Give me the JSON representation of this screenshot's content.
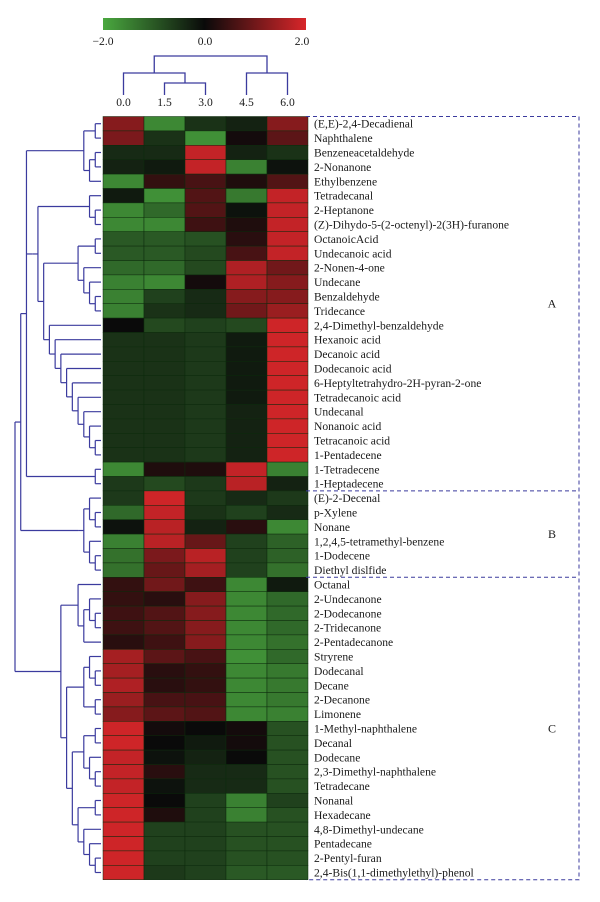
{
  "chart_data": {
    "type": "heatmap",
    "color_scale": {
      "min": -2.0,
      "mid": 0.0,
      "max": 2.0,
      "tick_labels": [
        "−2.0",
        "0.0",
        "2.0"
      ],
      "colors": {
        "low": "#4aa83f",
        "mid": "#0a0a0a",
        "high": "#d8262a"
      }
    },
    "columns": [
      "0.0",
      "1.5",
      "3.0",
      "4.5",
      "6.0"
    ],
    "rows": [
      {
        "label": "(E,E)-2,4-Decadienal",
        "values": [
          1.2,
          -1.6,
          -0.5,
          -0.3,
          1.2
        ]
      },
      {
        "label": "Naphthalene",
        "values": [
          1.1,
          -0.5,
          -1.7,
          0.1,
          0.8
        ]
      },
      {
        "label": "Benzeneacetaldehyde",
        "values": [
          -0.4,
          -0.4,
          1.8,
          -0.3,
          -0.5
        ]
      },
      {
        "label": "2-Nonanone",
        "values": [
          -0.3,
          -0.2,
          1.8,
          -1.5,
          -0.1
        ]
      },
      {
        "label": "Ethylbenzene",
        "values": [
          -1.6,
          0.4,
          0.6,
          0.2,
          0.7
        ]
      },
      {
        "label": "Tetradecanal",
        "values": [
          -0.2,
          -1.7,
          0.7,
          -1.4,
          1.8
        ]
      },
      {
        "label": "2-Heptanone",
        "values": [
          -1.6,
          -1.2,
          0.7,
          -0.1,
          1.8
        ]
      },
      {
        "label": "(Z)-Dihydo-5-(2-octenyl)-2(3H)-furanone",
        "values": [
          -1.6,
          -1.6,
          0.5,
          0.2,
          1.8
        ]
      },
      {
        "label": "OctanoicAcid",
        "values": [
          -1.0,
          -1.0,
          -0.9,
          0.3,
          1.8
        ]
      },
      {
        "label": "Undecanoic acid",
        "values": [
          -1.0,
          -1.0,
          -0.8,
          0.6,
          1.8
        ]
      },
      {
        "label": "2-Nonen-4-one",
        "values": [
          -1.2,
          -1.2,
          -0.8,
          1.6,
          1.0
        ]
      },
      {
        "label": "Undecane",
        "values": [
          -1.5,
          -1.6,
          0.1,
          1.6,
          1.2
        ]
      },
      {
        "label": "Benzaldehyde",
        "values": [
          -1.5,
          -0.7,
          -0.4,
          1.2,
          1.2
        ]
      },
      {
        "label": "Tridecance",
        "values": [
          -1.5,
          -0.5,
          -0.4,
          1.0,
          1.4
        ]
      },
      {
        "label": "2,4-Dimethyl-benzaldehyde",
        "values": [
          0.0,
          -0.8,
          -0.7,
          -0.8,
          1.9
        ]
      },
      {
        "label": "Hexanoic acid",
        "values": [
          -0.5,
          -0.5,
          -0.6,
          -0.2,
          1.9
        ]
      },
      {
        "label": "Decanoic acid",
        "values": [
          -0.5,
          -0.5,
          -0.6,
          -0.2,
          1.9
        ]
      },
      {
        "label": "Dodecanoic acid",
        "values": [
          -0.5,
          -0.5,
          -0.6,
          -0.2,
          1.9
        ]
      },
      {
        "label": "6-Heptyltetrahydro-2H-pyran-2-one",
        "values": [
          -0.5,
          -0.5,
          -0.6,
          -0.2,
          1.9
        ]
      },
      {
        "label": "Tetradecanoic acid",
        "values": [
          -0.5,
          -0.5,
          -0.6,
          -0.2,
          1.9
        ]
      },
      {
        "label": "Undecanal",
        "values": [
          -0.5,
          -0.5,
          -0.6,
          -0.3,
          1.9
        ]
      },
      {
        "label": "Nonanoic acid",
        "values": [
          -0.5,
          -0.5,
          -0.6,
          -0.3,
          1.9
        ]
      },
      {
        "label": "Tetracanoic acid",
        "values": [
          -0.5,
          -0.5,
          -0.6,
          -0.3,
          1.9
        ]
      },
      {
        "label": "1-Pentadecene",
        "values": [
          -0.5,
          -0.5,
          -0.6,
          -0.3,
          1.9
        ]
      },
      {
        "label": "1-Tetradecene",
        "values": [
          -1.6,
          0.2,
          0.2,
          1.8,
          -1.5
        ]
      },
      {
        "label": "1-Heptadecene",
        "values": [
          -0.6,
          -0.8,
          -0.6,
          1.7,
          -0.3
        ]
      },
      {
        "label": "(E)-2-Decenal",
        "values": [
          -0.6,
          1.9,
          -0.6,
          -0.4,
          -0.6
        ]
      },
      {
        "label": "p-Xylene",
        "values": [
          -1.2,
          1.8,
          -0.5,
          -0.7,
          -0.4
        ]
      },
      {
        "label": "Nonane",
        "values": [
          -0.1,
          1.7,
          -0.3,
          0.3,
          -1.6
        ]
      },
      {
        "label": "1,2,4,5-tetramethyl-benzene",
        "values": [
          -1.5,
          1.7,
          0.9,
          -0.7,
          -1.1
        ]
      },
      {
        "label": "1-Dodecene",
        "values": [
          -1.3,
          1.1,
          1.7,
          -0.7,
          -1.1
        ]
      },
      {
        "label": "Diethyl dislfide",
        "values": [
          -1.3,
          0.9,
          1.5,
          -0.7,
          -1.3
        ]
      },
      {
        "label": "Octanal",
        "values": [
          0.4,
          1.0,
          0.5,
          -1.6,
          -0.2
        ]
      },
      {
        "label": "2-Undecanone",
        "values": [
          0.4,
          0.3,
          1.2,
          -1.6,
          -1.2
        ]
      },
      {
        "label": "2-Dodecanone",
        "values": [
          0.5,
          0.7,
          1.2,
          -1.6,
          -1.2
        ]
      },
      {
        "label": "2-Tridecanone",
        "values": [
          0.5,
          0.7,
          1.2,
          -1.6,
          -1.2
        ]
      },
      {
        "label": "2-Pentadecanone",
        "values": [
          0.3,
          0.5,
          1.2,
          -1.6,
          -1.3
        ]
      },
      {
        "label": "Stryrene",
        "values": [
          1.5,
          0.8,
          0.6,
          -1.7,
          -1.2
        ]
      },
      {
        "label": "Dodecanal",
        "values": [
          1.5,
          0.3,
          0.4,
          -1.6,
          -1.4
        ]
      },
      {
        "label": "Decane",
        "values": [
          1.6,
          0.3,
          0.4,
          -1.6,
          -1.4
        ]
      },
      {
        "label": "2-Decanone",
        "values": [
          1.4,
          0.6,
          0.6,
          -1.6,
          -1.4
        ]
      },
      {
        "label": "Limonene",
        "values": [
          1.2,
          0.8,
          0.7,
          -1.6,
          -1.5
        ]
      },
      {
        "label": "1-Methyl-naphthalene",
        "values": [
          1.9,
          0.1,
          0.0,
          0.1,
          -0.9
        ]
      },
      {
        "label": "Decanal",
        "values": [
          1.9,
          0.0,
          -0.2,
          0.1,
          -0.9
        ]
      },
      {
        "label": "Dodecane",
        "values": [
          1.8,
          -0.1,
          -0.3,
          0.0,
          -0.9
        ]
      },
      {
        "label": "2,3-Dimethyl-naphthalene",
        "values": [
          1.8,
          0.3,
          -0.4,
          -0.4,
          -0.9
        ]
      },
      {
        "label": "Tetradecane",
        "values": [
          1.8,
          -0.1,
          -0.4,
          -0.4,
          -0.9
        ]
      },
      {
        "label": "Nonanal",
        "values": [
          1.9,
          0.0,
          -0.7,
          -1.5,
          -0.7
        ]
      },
      {
        "label": "Hexadecane",
        "values": [
          1.9,
          0.2,
          -0.7,
          -1.5,
          -0.9
        ]
      },
      {
        "label": "4,8-Dimethyl-undecane",
        "values": [
          1.9,
          -0.7,
          -0.7,
          -0.9,
          -0.9
        ]
      },
      {
        "label": "Pentadecane",
        "values": [
          1.9,
          -0.7,
          -0.7,
          -0.9,
          -0.9
        ]
      },
      {
        "label": "2-Pentyl-furan",
        "values": [
          1.9,
          -0.7,
          -0.7,
          -0.9,
          -0.9
        ]
      },
      {
        "label": "2,4-Bis(1,1-dimethylethyl)-phenol",
        "values": [
          1.9,
          -0.6,
          -0.7,
          -1.0,
          -1.0
        ]
      }
    ],
    "groups": [
      {
        "label": "A",
        "first_row": 0,
        "last_row": 25
      },
      {
        "label": "B",
        "first_row": 26,
        "last_row": 31
      },
      {
        "label": "C",
        "first_row": 32,
        "last_row": 52
      }
    ],
    "row_dendrogram": true,
    "column_dendrogram": true,
    "line_color": "#3b3b9e",
    "group_border_color": "#3b3b9e"
  }
}
